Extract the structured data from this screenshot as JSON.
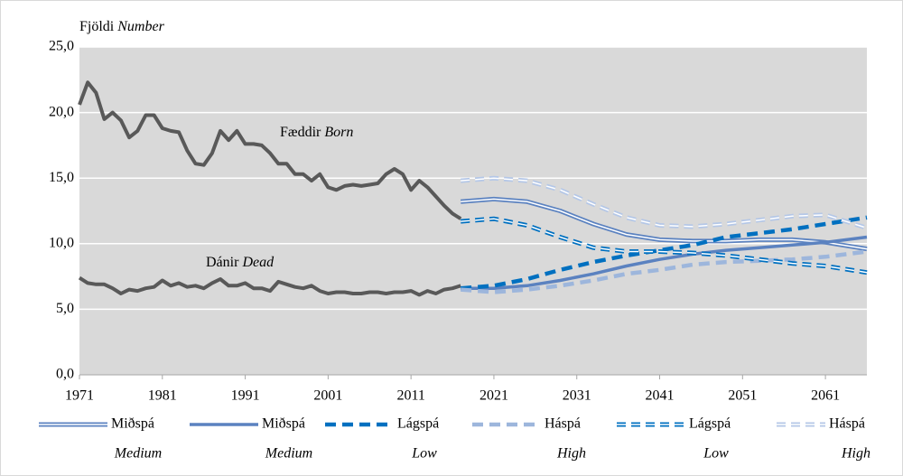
{
  "chart_data": {
    "type": "line",
    "ylabel": "Fjöldi",
    "ylabel_en": "Number",
    "xlim": [
      1971,
      2066
    ],
    "xticks": [
      1971,
      1981,
      1991,
      2001,
      2011,
      2021,
      2031,
      2041,
      2051,
      2061
    ],
    "ylim": [
      0,
      25
    ],
    "yticks": [
      {
        "value": 0,
        "label": "0,0"
      },
      {
        "value": 5,
        "label": "5,0"
      },
      {
        "value": 10,
        "label": "10,0"
      },
      {
        "value": 15,
        "label": "15,0"
      },
      {
        "value": 20,
        "label": "20,0"
      },
      {
        "value": 25,
        "label": "25,0"
      }
    ],
    "grid": true,
    "history": [
      {
        "name": "Fæddir",
        "name_en": "Born",
        "color": "#595959",
        "x": [
          1971,
          1972,
          1973,
          1974,
          1975,
          1976,
          1977,
          1978,
          1979,
          1980,
          1981,
          1982,
          1983,
          1984,
          1985,
          1986,
          1987,
          1988,
          1989,
          1990,
          1991,
          1992,
          1993,
          1994,
          1995,
          1996,
          1997,
          1998,
          1999,
          2000,
          2001,
          2002,
          2003,
          2004,
          2005,
          2006,
          2007,
          2008,
          2009,
          2010,
          2011,
          2012,
          2013,
          2014,
          2015,
          2016,
          2017
        ],
        "values": [
          20.6,
          22.3,
          21.5,
          19.5,
          20.0,
          19.4,
          18.1,
          18.6,
          19.8,
          19.8,
          18.8,
          18.6,
          18.5,
          17.1,
          16.1,
          16.0,
          16.9,
          18.6,
          17.9,
          18.6,
          17.6,
          17.6,
          17.5,
          16.9,
          16.1,
          16.1,
          15.3,
          15.3,
          14.8,
          15.3,
          14.3,
          14.1,
          14.4,
          14.5,
          14.4,
          14.5,
          14.6,
          15.3,
          15.7,
          15.3,
          14.1,
          14.8,
          14.3,
          13.6,
          12.9,
          12.3,
          11.9
        ]
      },
      {
        "name": "Dánir",
        "name_en": "Dead",
        "color": "#595959",
        "x": [
          1971,
          1972,
          1973,
          1974,
          1975,
          1976,
          1977,
          1978,
          1979,
          1980,
          1981,
          1982,
          1983,
          1984,
          1985,
          1986,
          1987,
          1988,
          1989,
          1990,
          1991,
          1992,
          1993,
          1994,
          1995,
          1996,
          1997,
          1998,
          1999,
          2000,
          2001,
          2002,
          2003,
          2004,
          2005,
          2006,
          2007,
          2008,
          2009,
          2010,
          2011,
          2012,
          2013,
          2014,
          2015,
          2016,
          2017
        ],
        "values": [
          7.4,
          7.0,
          6.9,
          6.9,
          6.6,
          6.2,
          6.5,
          6.4,
          6.6,
          6.7,
          7.2,
          6.8,
          7.0,
          6.7,
          6.8,
          6.6,
          7.0,
          7.3,
          6.8,
          6.8,
          7.0,
          6.6,
          6.6,
          6.4,
          7.1,
          6.9,
          6.7,
          6.6,
          6.8,
          6.4,
          6.2,
          6.3,
          6.3,
          6.2,
          6.2,
          6.3,
          6.3,
          6.2,
          6.3,
          6.3,
          6.4,
          6.1,
          6.4,
          6.2,
          6.5,
          6.6,
          6.8
        ]
      }
    ],
    "series": [
      {
        "name": "Miðspá",
        "name_en": "Medium",
        "color": "#5b82c0",
        "double": true,
        "dashed": false,
        "x": [
          2017,
          2021,
          2025,
          2029,
          2033,
          2037,
          2041,
          2045,
          2049,
          2053,
          2057,
          2061,
          2066
        ],
        "values": [
          13.2,
          13.4,
          13.2,
          12.5,
          11.5,
          10.7,
          10.3,
          10.2,
          10.2,
          10.3,
          10.3,
          10.1,
          9.6
        ]
      },
      {
        "name": "Miðspá",
        "name_en": "Medium",
        "color": "#5b82c0",
        "double": false,
        "dashed": false,
        "x": [
          2017,
          2021,
          2025,
          2029,
          2033,
          2037,
          2041,
          2045,
          2049,
          2053,
          2057,
          2061,
          2066
        ],
        "values": [
          6.6,
          6.6,
          6.8,
          7.2,
          7.7,
          8.3,
          8.8,
          9.2,
          9.5,
          9.7,
          9.9,
          10.1,
          10.5
        ]
      },
      {
        "name": "Lágspá",
        "name_en": "Low",
        "color": "#0070c0",
        "double": false,
        "dashed": true,
        "x": [
          2017,
          2021,
          2025,
          2029,
          2033,
          2037,
          2041,
          2045,
          2049,
          2053,
          2057,
          2061,
          2066
        ],
        "values": [
          6.6,
          6.8,
          7.3,
          8.0,
          8.6,
          9.1,
          9.5,
          9.9,
          10.5,
          10.8,
          11.1,
          11.5,
          12.0
        ]
      },
      {
        "name": "Háspá",
        "name_en": "High",
        "color": "#9db6dc",
        "double": false,
        "dashed": true,
        "x": [
          2017,
          2021,
          2025,
          2029,
          2033,
          2037,
          2041,
          2045,
          2049,
          2053,
          2057,
          2061,
          2066
        ],
        "values": [
          6.5,
          6.3,
          6.5,
          6.8,
          7.2,
          7.7,
          8.0,
          8.4,
          8.6,
          8.7,
          8.8,
          9.0,
          9.4
        ]
      },
      {
        "name": "Lágspá",
        "name_en": "Low",
        "color": "#0070c0",
        "double": true,
        "dashed": true,
        "x": [
          2017,
          2021,
          2025,
          2029,
          2033,
          2037,
          2041,
          2045,
          2049,
          2053,
          2057,
          2061,
          2066
        ],
        "values": [
          11.7,
          11.9,
          11.4,
          10.5,
          9.7,
          9.4,
          9.4,
          9.3,
          9.1,
          8.8,
          8.5,
          8.3,
          7.8
        ]
      },
      {
        "name": "Háspá",
        "name_en": "High",
        "color": "#b4c7e7",
        "double": true,
        "dashed": true,
        "x": [
          2017,
          2021,
          2025,
          2029,
          2033,
          2037,
          2041,
          2045,
          2049,
          2053,
          2057,
          2061,
          2066
        ],
        "values": [
          14.8,
          15.0,
          14.8,
          14.1,
          13.0,
          12.0,
          11.4,
          11.3,
          11.5,
          11.8,
          12.1,
          12.2,
          11.2
        ]
      }
    ]
  }
}
